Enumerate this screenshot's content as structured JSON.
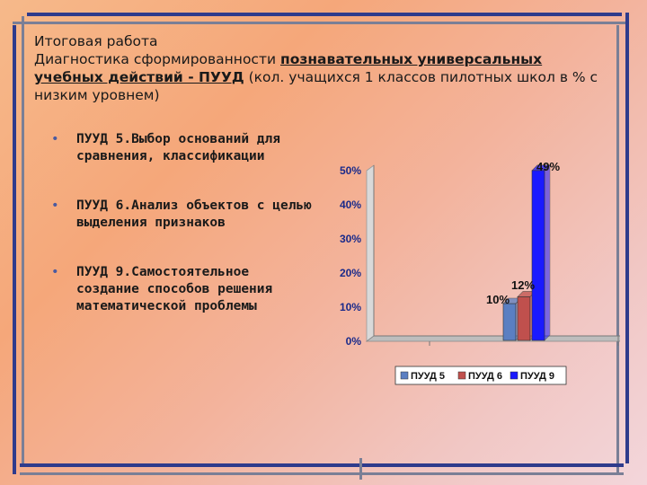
{
  "header": {
    "title": "Итоговая работа",
    "line_prefix": "Диагностика сформированности ",
    "highlight": "познавательных универсальных учебных действий - ПУУД",
    "line_suffix": " (кол. учащихся 1 классов пилотных школ в % с низким уровнем)"
  },
  "items": [
    {
      "bullet": "•",
      "text": "ПУУД 5.Выбор оснований для сравнения, классификации"
    },
    {
      "bullet": "•",
      "text": "ПУУД 6.Анализ объектов с целью выделения признаков"
    },
    {
      "bullet": "•",
      "text": "ПУУД 9.Самостоятельное создание способов решения математической проблемы"
    }
  ],
  "colors": {
    "frame": "#2f3b8c",
    "series": [
      "#5b7fc2",
      "#c0504d",
      "#1a1aff"
    ]
  },
  "chart_data": {
    "type": "bar",
    "categories": [
      ""
    ],
    "series": [
      {
        "name": "ПУУД 5",
        "values": [
          10
        ],
        "label": "10%"
      },
      {
        "name": "ПУУД 6",
        "values": [
          12
        ],
        "label": "12%"
      },
      {
        "name": "ПУУД 9",
        "values": [
          49
        ],
        "label": "49%"
      }
    ],
    "ylim": [
      0,
      50
    ],
    "yticks": [
      "0%",
      "10%",
      "20%",
      "30%",
      "40%",
      "50%"
    ],
    "legend": "bottom"
  }
}
